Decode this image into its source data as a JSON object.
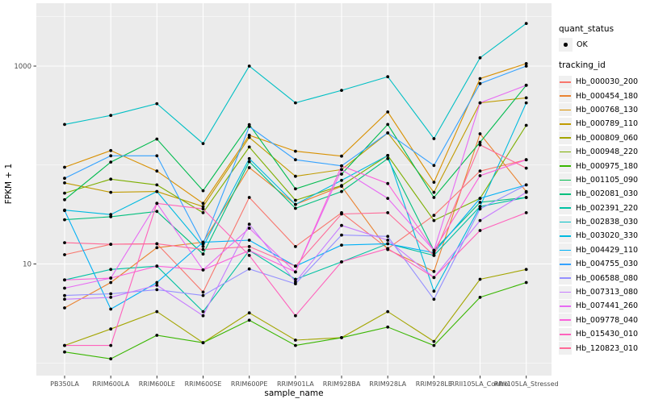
{
  "chart_data": {
    "type": "line",
    "title": "",
    "xlabel": "sample_name",
    "ylabel": "FPKM + 1",
    "y_scale": "log10",
    "y_tick_labels": [
      "1000",
      "10"
    ],
    "y_tick_values": [
      1000,
      10
    ],
    "y_minor_values": [
      3162,
      100,
      1
    ],
    "ylim_fpkm": [
      1,
      3500
    ],
    "grid": "white-on-gray",
    "legend_position": "right",
    "panel_bg": "#EBEBEB",
    "grid_color": "#FFFFFF",
    "point_color": "#000000",
    "tick_text_color": "#4D4D4D",
    "axis_title_color": "#000000",
    "categories": [
      "PB350LA",
      "RRIM600LA",
      "RRIM600LE",
      "RRIM600SE",
      "RRIM600PE",
      "RRIM901LA",
      "RRIM928BA",
      "RRIM928LA",
      "RRIM928LE",
      "RRII105LA_Control",
      "RRII105LA_Stressed"
    ],
    "series": [
      {
        "name": "Hb_000030_200",
        "color": "#F8766D",
        "values": [
          12.4,
          15.8,
          16,
          5.2,
          47,
          15,
          33,
          14.3,
          31,
          87,
          113
        ]
      },
      {
        "name": "Hb_000454_180",
        "color": "#EA8331",
        "values": [
          3.6,
          6.5,
          14.6,
          16.6,
          94,
          40,
          61,
          14,
          8.4,
          207,
          54
        ]
      },
      {
        "name": "Hb_000768_130",
        "color": "#D89000",
        "values": [
          95,
          140,
          87,
          41,
          200,
          138,
          123,
          344,
          67,
          747,
          1060
        ]
      },
      {
        "name": "Hb_000789_110",
        "color": "#C09B00",
        "values": [
          66,
          53,
          54,
          38,
          190,
          77,
          90,
          211,
          53,
          425,
          478
        ]
      },
      {
        "name": "Hb_000809_060",
        "color": "#A3A500",
        "values": [
          1.5,
          2.2,
          3.3,
          1.6,
          3.2,
          1.7,
          1.8,
          3.3,
          1.65,
          7.0,
          8.8
        ]
      },
      {
        "name": "Hb_000948_220",
        "color": "#7CAE00",
        "values": [
          52,
          72,
          63,
          33,
          152,
          44,
          62,
          125,
          27.5,
          46,
          252
        ]
      },
      {
        "name": "Hb_000975_180",
        "color": "#39B600",
        "values": [
          1.29,
          1.1,
          1.9,
          1.6,
          2.7,
          1.5,
          1.8,
          2.3,
          1.5,
          4.6,
          6.5
        ]
      },
      {
        "name": "Hb_001105_090",
        "color": "#00BB4E",
        "values": [
          44.6,
          107,
          183,
          55,
          256,
          57.5,
          81,
          257,
          47,
          170,
          640
        ]
      },
      {
        "name": "Hb_002081_030",
        "color": "#00BF7D",
        "values": [
          28,
          30,
          34,
          12.6,
          108,
          36.5,
          54,
          116,
          13.7,
          42,
          47
        ]
      },
      {
        "name": "Hb_002391_220",
        "color": "#00C1A3",
        "values": [
          6.9,
          8.8,
          9.5,
          3.3,
          13.7,
          7.0,
          10.5,
          16,
          12.2,
          38,
          47
        ]
      },
      {
        "name": "Hb_002838_030",
        "color": "#00BFC4",
        "values": [
          257,
          317,
          417,
          165,
          1000,
          425,
          569,
          780,
          185,
          1213,
          2700
        ]
      },
      {
        "name": "Hb_003020_330",
        "color": "#00BAE0",
        "values": [
          35,
          31.6,
          54,
          15,
          116,
          40,
          70,
          125,
          5.3,
          38,
          425
        ]
      },
      {
        "name": "Hb_004429_110",
        "color": "#00B0F6",
        "values": [
          34.7,
          3.5,
          6.5,
          16.6,
          17.4,
          9.5,
          15.5,
          16,
          13,
          46,
          63
        ]
      },
      {
        "name": "Hb_004755_030",
        "color": "#35A2FF",
        "values": [
          73.5,
          124,
          124,
          16,
          245,
          113,
          98,
          211,
          99,
          665,
          1000
        ]
      },
      {
        "name": "Hb_006588_080",
        "color": "#9590FF",
        "values": [
          4.8,
          5.0,
          5.5,
          4.8,
          8.9,
          6.3,
          19.6,
          19,
          4.4,
          36,
          63
        ]
      },
      {
        "name": "Hb_007313_080",
        "color": "#C77CFF",
        "values": [
          4.4,
          4.6,
          6.1,
          3.0,
          25.2,
          6.6,
          24.5,
          17.4,
          7.3,
          27.5,
          53
        ]
      },
      {
        "name": "Hb_007441_260",
        "color": "#E76BF3",
        "values": [
          5.7,
          7.2,
          41,
          8.7,
          23,
          8.3,
          90,
          46,
          13.7,
          425,
          640
        ]
      },
      {
        "name": "Hb_009778_040",
        "color": "#FA62DB",
        "values": [
          6.9,
          7.2,
          9.5,
          8.7,
          13.7,
          8.3,
          98,
          65,
          13.7,
          78,
          113
        ]
      },
      {
        "name": "Hb_015430_010",
        "color": "#FF62BC",
        "values": [
          1.5,
          1.5,
          41,
          36,
          12.2,
          3.0,
          10.5,
          14.3,
          7.3,
          21.8,
          33
        ]
      },
      {
        "name": "Hb_120823_010",
        "color": "#FF6A98",
        "values": [
          16.4,
          15.8,
          16,
          14,
          15,
          9.5,
          32,
          33,
          12.2,
          160,
          93
        ]
      }
    ]
  },
  "legend": {
    "quant_status_title": "quant_status",
    "quant_status_items": [
      {
        "label": "OK",
        "symbol": "black-point"
      }
    ],
    "tracking_title": "tracking_id"
  }
}
